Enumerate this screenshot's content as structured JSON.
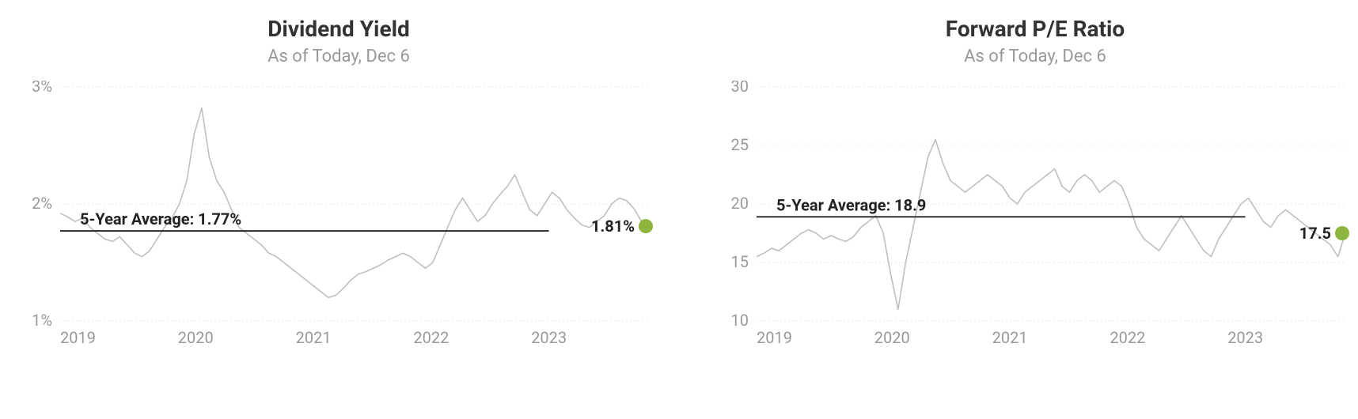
{
  "panels": [
    {
      "id": "dividend",
      "title": "Dividend Yield",
      "subtitle": "As of Today, Dec 6",
      "type": "line",
      "ylim": [
        1,
        3
      ],
      "ytick_step": 1,
      "ytick_format": "percent",
      "xlabels": [
        "2019",
        "2020",
        "2021",
        "2022",
        "2023"
      ],
      "avg_label": "5-Year Average: 1.77%",
      "avg_value": 1.77,
      "last_label": "1.81%",
      "last_value": 1.81,
      "line_color": "#bfbfbf",
      "grid_color": "#e8e8e8",
      "dot_color": "#8eb63f",
      "title_color": "#333333",
      "subtitle_color": "#999999",
      "label_color": "#222222",
      "background_color": "#ffffff",
      "title_fontsize": 28,
      "subtitle_fontsize": 22,
      "tick_fontsize": 20,
      "label_fontsize": 20,
      "series": [
        1.92,
        1.89,
        1.85,
        1.88,
        1.8,
        1.75,
        1.7,
        1.68,
        1.72,
        1.65,
        1.58,
        1.55,
        1.6,
        1.7,
        1.8,
        1.88,
        2.0,
        2.2,
        2.6,
        2.82,
        2.4,
        2.2,
        2.1,
        1.95,
        1.8,
        1.75,
        1.7,
        1.65,
        1.58,
        1.55,
        1.5,
        1.45,
        1.4,
        1.35,
        1.3,
        1.25,
        1.2,
        1.22,
        1.28,
        1.35,
        1.4,
        1.42,
        1.45,
        1.48,
        1.52,
        1.55,
        1.58,
        1.55,
        1.5,
        1.45,
        1.5,
        1.65,
        1.8,
        1.95,
        2.05,
        1.95,
        1.85,
        1.9,
        2.0,
        2.08,
        2.15,
        2.25,
        2.1,
        1.95,
        1.9,
        2.0,
        2.1,
        2.05,
        1.95,
        1.88,
        1.82,
        1.8,
        1.85,
        1.9,
        2.0,
        2.05,
        2.03,
        1.96,
        1.85,
        1.81
      ]
    },
    {
      "id": "fpe",
      "title": "Forward P/E Ratio",
      "subtitle": "As of Today, Dec 6",
      "type": "line",
      "ylim": [
        10,
        30
      ],
      "ytick_step": 5,
      "ytick_format": "number",
      "xlabels": [
        "2019",
        "2020",
        "2021",
        "2022",
        "2023"
      ],
      "avg_label": "5-Year Average: 18.9",
      "avg_value": 18.9,
      "last_label": "17.5",
      "last_value": 17.5,
      "line_color": "#bfbfbf",
      "grid_color": "#e8e8e8",
      "dot_color": "#8eb63f",
      "title_color": "#333333",
      "subtitle_color": "#999999",
      "label_color": "#222222",
      "background_color": "#ffffff",
      "title_fontsize": 28,
      "subtitle_fontsize": 22,
      "tick_fontsize": 20,
      "label_fontsize": 20,
      "series": [
        15.5,
        15.8,
        16.2,
        16.0,
        16.5,
        17.0,
        17.5,
        17.8,
        17.5,
        17.0,
        17.3,
        17.0,
        16.8,
        17.2,
        18.0,
        18.5,
        19.0,
        17.5,
        14.0,
        11.0,
        15.0,
        18.0,
        21.0,
        24.0,
        25.5,
        23.5,
        22.0,
        21.5,
        21.0,
        21.5,
        22.0,
        22.5,
        22.0,
        21.5,
        20.5,
        20.0,
        21.0,
        21.5,
        22.0,
        22.5,
        23.0,
        21.5,
        21.0,
        22.0,
        22.5,
        22.0,
        21.0,
        21.5,
        22.0,
        21.5,
        20.0,
        18.0,
        17.0,
        16.5,
        16.0,
        17.0,
        18.0,
        19.0,
        18.0,
        17.0,
        16.0,
        15.5,
        17.0,
        18.0,
        19.0,
        20.0,
        20.5,
        19.5,
        18.5,
        18.0,
        19.0,
        19.5,
        19.0,
        18.5,
        18.0,
        17.5,
        17.0,
        16.5,
        15.5,
        17.5
      ]
    }
  ]
}
